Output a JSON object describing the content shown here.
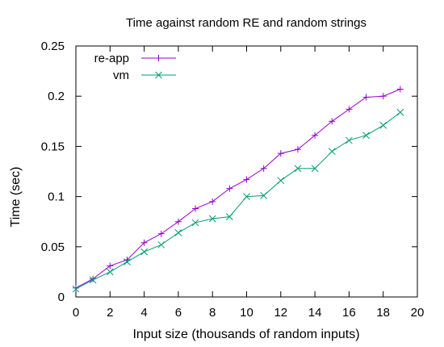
{
  "chart_data": {
    "type": "line",
    "title": "Time against random RE and random strings",
    "xlabel": "Input size (thousands of random inputs)",
    "ylabel": "Time (sec)",
    "xlim": [
      0,
      20
    ],
    "ylim": [
      0,
      0.25
    ],
    "xticks": [
      0,
      2,
      4,
      6,
      8,
      10,
      12,
      14,
      16,
      18,
      20
    ],
    "yticks": [
      0,
      0.05,
      0.1,
      0.15,
      0.2,
      0.25
    ],
    "xtick_labels": [
      "0",
      "2",
      "4",
      "6",
      "8",
      "10",
      "12",
      "14",
      "16",
      "18",
      "20"
    ],
    "ytick_labels": [
      "0",
      "0.05",
      "0.1",
      "0.15",
      "0.2",
      "0.25"
    ],
    "grid": false,
    "legend_position": "top-left",
    "x": [
      0,
      1,
      2,
      3,
      4,
      5,
      6,
      7,
      8,
      9,
      10,
      11,
      12,
      13,
      14,
      15,
      16,
      17,
      18,
      19
    ],
    "series": [
      {
        "name": "re-app",
        "color": "#9400d3",
        "marker": "plus",
        "values": [
          0.009,
          0.018,
          0.031,
          0.037,
          0.054,
          0.063,
          0.075,
          0.088,
          0.095,
          0.108,
          0.117,
          0.128,
          0.143,
          0.147,
          0.161,
          0.175,
          0.187,
          0.199,
          0.2,
          0.207
        ]
      },
      {
        "name": "vm",
        "color": "#009e73",
        "marker": "cross",
        "values": [
          0.008,
          0.017,
          0.025,
          0.035,
          0.045,
          0.052,
          0.064,
          0.074,
          0.078,
          0.08,
          0.1,
          0.101,
          0.116,
          0.128,
          0.128,
          0.145,
          0.156,
          0.161,
          0.171,
          0.184
        ]
      }
    ]
  }
}
